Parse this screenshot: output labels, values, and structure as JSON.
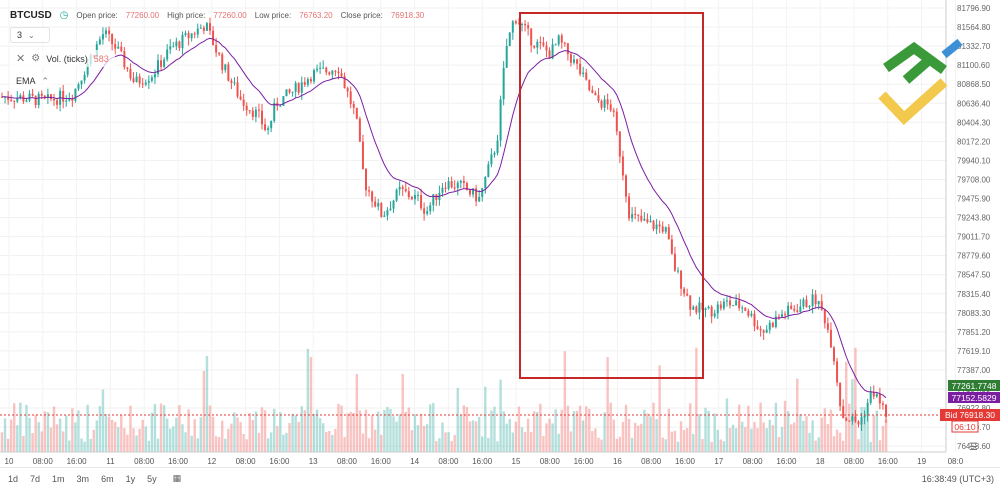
{
  "header": {
    "symbol": "BTCUSD",
    "open_label": "Open price:",
    "open_value": "77260.00",
    "high_label": "High price:",
    "high_value": "77260.00",
    "low_label": "Low price:",
    "low_value": "76763.20",
    "close_label": "Close price:",
    "close_value": "76918.30"
  },
  "period_select": {
    "value": "3"
  },
  "volume_indicator": {
    "label": "Vol. (ticks)",
    "value": "583"
  },
  "ema_indicator": {
    "label": "EMA"
  },
  "price_tags": {
    "green": "77261.7748",
    "purple": "77152.5829",
    "bid": "Bid 76918.30",
    "countdown": "06:10"
  },
  "timeframes": [
    "1d",
    "7d",
    "1m",
    "3m",
    "6m",
    "1y",
    "5y"
  ],
  "clock": "16:38:49 (UTC+3)",
  "colors": {
    "up": "#26a69a",
    "down": "#ef5350",
    "ema": "#7b1fa2",
    "highlight_box": "#c62828",
    "bid": "#e53935",
    "green_tag": "#2e7d32",
    "purple_tag": "#7b1fa2"
  },
  "chart_data": {
    "type": "candlestick",
    "y_ticks": [
      "81796.90",
      "81564.80",
      "81332.70",
      "81100.60",
      "80868.50",
      "80636.40",
      "80404.30",
      "80172.20",
      "79940.10",
      "79708.00",
      "79475.90",
      "79243.80",
      "79011.70",
      "78779.60",
      "78547.50",
      "78315.40",
      "78083.30",
      "77851.20",
      "77619.10",
      "77387.00",
      "77154.90",
      "76922.80",
      "76690.70",
      "76458.60"
    ],
    "x_ticks": [
      "10",
      "08:00",
      "16:00",
      "11",
      "08:00",
      "16:00",
      "12",
      "08:00",
      "16:00",
      "13",
      "08:00",
      "16:00",
      "14",
      "08:00",
      "16:00",
      "15",
      "08:00",
      "16:00",
      "16",
      "08:00",
      "16:00",
      "17",
      "08:00",
      "16:00",
      "18",
      "08:00",
      "16:00",
      "19",
      "08:0"
    ],
    "ylim": [
      76458.6,
      81796.9
    ],
    "price_path": [
      [
        0,
        80730
      ],
      [
        0.02,
        80720
      ],
      [
        0.05,
        80680
      ],
      [
        0.08,
        80760
      ],
      [
        0.1,
        81200
      ],
      [
        0.115,
        81500
      ],
      [
        0.13,
        81300
      ],
      [
        0.15,
        80900
      ],
      [
        0.17,
        81000
      ],
      [
        0.19,
        81300
      ],
      [
        0.21,
        81450
      ],
      [
        0.23,
        81600
      ],
      [
        0.25,
        81100
      ],
      [
        0.27,
        80700
      ],
      [
        0.29,
        80500
      ],
      [
        0.3,
        80300
      ],
      [
        0.31,
        80650
      ],
      [
        0.33,
        80800
      ],
      [
        0.35,
        81000
      ],
      [
        0.37,
        81050
      ],
      [
        0.38,
        81100
      ],
      [
        0.4,
        80500
      ],
      [
        0.41,
        79700
      ],
      [
        0.43,
        79300
      ],
      [
        0.45,
        79600
      ],
      [
        0.47,
        79500
      ],
      [
        0.48,
        79350
      ],
      [
        0.5,
        79700
      ],
      [
        0.52,
        79650
      ],
      [
        0.54,
        79500
      ],
      [
        0.56,
        80200
      ],
      [
        0.57,
        81300
      ],
      [
        0.58,
        81700
      ],
      [
        0.6,
        81400
      ],
      [
        0.62,
        81250
      ],
      [
        0.63,
        81400
      ],
      [
        0.65,
        81100
      ],
      [
        0.67,
        80700
      ],
      [
        0.69,
        80600
      ],
      [
        0.7,
        80000
      ],
      [
        0.71,
        79300
      ],
      [
        0.73,
        79200
      ],
      [
        0.75,
        79150
      ],
      [
        0.76,
        78700
      ],
      [
        0.78,
        78200
      ],
      [
        0.8,
        78150
      ],
      [
        0.82,
        78250
      ],
      [
        0.84,
        78200
      ],
      [
        0.86,
        77900
      ],
      [
        0.88,
        78100
      ],
      [
        0.9,
        78200
      ],
      [
        0.92,
        78300
      ],
      [
        0.93,
        78100
      ],
      [
        0.94,
        77700
      ],
      [
        0.95,
        76900
      ],
      [
        0.97,
        76800
      ],
      [
        0.985,
        77200
      ],
      [
        1,
        76920
      ]
    ],
    "volume_level": 0.35
  }
}
